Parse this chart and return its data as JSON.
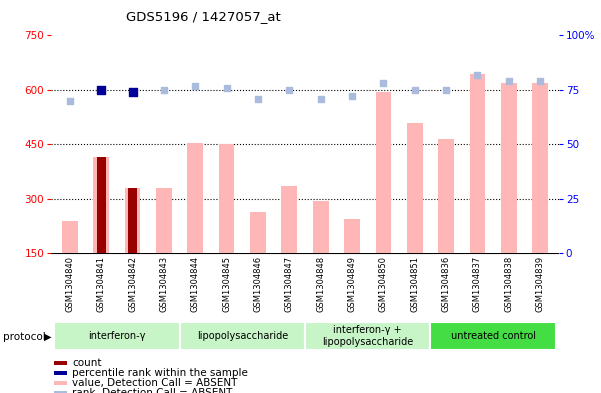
{
  "title": "GDS5196 / 1427057_at",
  "samples": [
    "GSM1304840",
    "GSM1304841",
    "GSM1304842",
    "GSM1304843",
    "GSM1304844",
    "GSM1304845",
    "GSM1304846",
    "GSM1304847",
    "GSM1304848",
    "GSM1304849",
    "GSM1304850",
    "GSM1304851",
    "GSM1304836",
    "GSM1304837",
    "GSM1304838",
    "GSM1304839"
  ],
  "groups": [
    {
      "label": "interferon-γ",
      "start": 0,
      "end": 4,
      "color": "#c8f0c8"
    },
    {
      "label": "lipopolysaccharide",
      "start": 4,
      "end": 8,
      "color": "#c8f0c8"
    },
    {
      "label": "interferon-γ +\nlipopolysaccharide",
      "start": 8,
      "end": 12,
      "color": "#c8f0c8"
    },
    {
      "label": "untreated control",
      "start": 12,
      "end": 16,
      "color": "#44dd44"
    }
  ],
  "values_absent": [
    240,
    415,
    330,
    330,
    455,
    450,
    265,
    335,
    295,
    245,
    595,
    510,
    465,
    645,
    620,
    620
  ],
  "ranks_absent": [
    70,
    75,
    74,
    75,
    77,
    76,
    71,
    75,
    71,
    72,
    78,
    75,
    75,
    82,
    79,
    79
  ],
  "count_indices": [
    1,
    2
  ],
  "count_values": [
    415,
    330
  ],
  "percentile_indices": [
    1,
    2
  ],
  "percentile_values": [
    75,
    74
  ],
  "ylim_left": [
    150,
    750
  ],
  "ylim_right": [
    0,
    100
  ],
  "yticks_left": [
    150,
    300,
    450,
    600,
    750
  ],
  "yticks_right": [
    0,
    25,
    50,
    75,
    100
  ],
  "bar_color_value": "#ffb6b6",
  "bar_color_count": "#990000",
  "dot_color_rank_dark": "#000099",
  "dot_color_rank_light": "#aabbdd",
  "bg_color": "#ffffff",
  "outer_bg": "#ffffff",
  "label_area_color": "#dddddd",
  "grid_dotted_color": "#000000",
  "legend_items": [
    {
      "color": "#990000",
      "label": "count"
    },
    {
      "color": "#000099",
      "label": "percentile rank within the sample"
    },
    {
      "color": "#ffb6b6",
      "label": "value, Detection Call = ABSENT"
    },
    {
      "color": "#aabbdd",
      "label": "rank, Detection Call = ABSENT"
    }
  ]
}
